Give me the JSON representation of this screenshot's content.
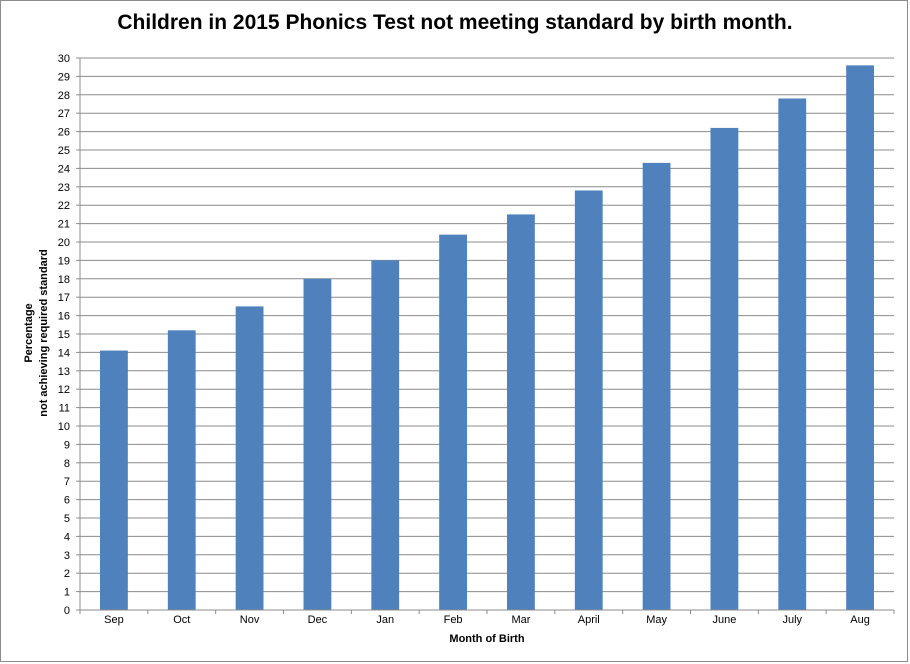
{
  "chart_data": {
    "type": "bar",
    "title": "Children in 2015 Phonics Test not meeting standard by birth month.",
    "xlabel": "Month of Birth",
    "ylabel_lines": [
      "Percentage",
      "not achieving  required standard"
    ],
    "categories": [
      "Sep",
      "Oct",
      "Nov",
      "Dec",
      "Jan",
      "Feb",
      "Mar",
      "April",
      "May",
      "June",
      "July",
      "Aug"
    ],
    "values": [
      14.1,
      15.2,
      16.5,
      18.0,
      19.0,
      20.4,
      21.5,
      22.8,
      24.3,
      26.2,
      27.8,
      29.6
    ],
    "ylim": [
      0,
      30
    ],
    "ytick_step": 1,
    "grid": true,
    "bar_color": "#4f81bd",
    "grid_color": "#8c8c8c"
  }
}
